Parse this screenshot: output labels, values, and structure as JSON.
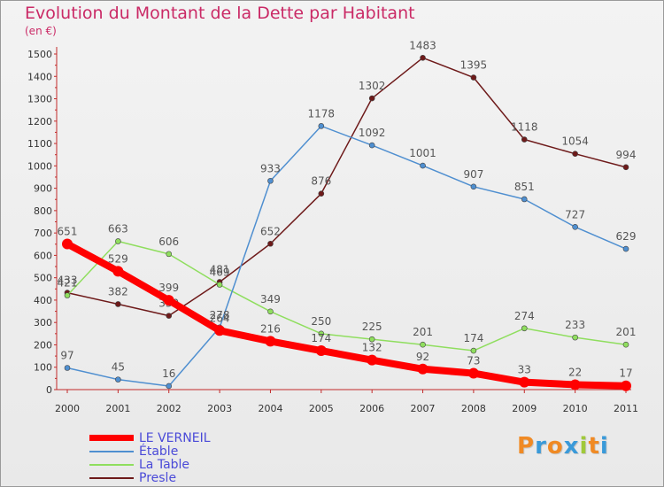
{
  "chart_data": {
    "type": "line",
    "title": "Evolution du Montant de la Dette par Habitant",
    "unit_label": "(en €)",
    "xlabel": "",
    "ylabel": "",
    "ylim": [
      0,
      1500
    ],
    "yticks": [
      0,
      100,
      200,
      300,
      400,
      500,
      600,
      700,
      800,
      900,
      1000,
      1100,
      1200,
      1300,
      1400,
      1500
    ],
    "categories": [
      "2000",
      "2001",
      "2002",
      "2003",
      "2004",
      "2005",
      "2006",
      "2007",
      "2008",
      "2009",
      "2010",
      "2011"
    ],
    "grid": false,
    "legend_position": "bottom-left",
    "series": [
      {
        "name": "LE VERNEIL",
        "color": "#ff0000",
        "values": [
          651,
          529,
          399,
          264,
          216,
          174,
          132,
          92,
          73,
          33,
          22,
          17
        ]
      },
      {
        "name": "Étable",
        "color": "#4f8fd0",
        "values": [
          97,
          45,
          16,
          278,
          933,
          1178,
          1092,
          1001,
          907,
          851,
          727,
          629
        ]
      },
      {
        "name": "La Table",
        "color": "#8fde5e",
        "values": [
          421,
          663,
          606,
          469,
          349,
          250,
          225,
          201,
          174,
          274,
          233,
          201
        ]
      },
      {
        "name": "Presle",
        "color": "#6e1a1a",
        "values": [
          433,
          382,
          330,
          481,
          652,
          876,
          1302,
          1483,
          1395,
          1118,
          1054,
          994
        ]
      }
    ]
  },
  "logo": {
    "letters": [
      "P",
      "r",
      "o",
      "x",
      "i",
      "t",
      "i"
    ],
    "colors": [
      "#f08a24",
      "#3a9ad9",
      "#f08a24",
      "#3a9ad9",
      "#a0c93a",
      "#f08a24",
      "#3a9ad9"
    ]
  }
}
